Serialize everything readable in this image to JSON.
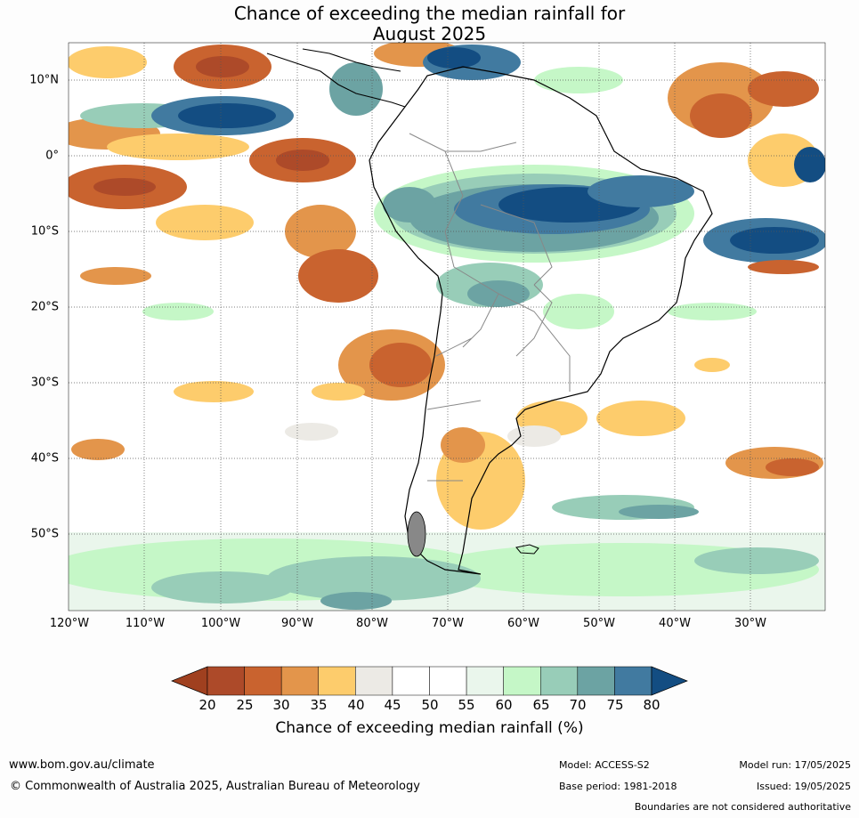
{
  "title": {
    "line1": "Chance of exceeding the median rainfall for",
    "line2": "August 2025"
  },
  "map": {
    "lon_labels": [
      "120°W",
      "110°W",
      "100°W",
      "90°W",
      "80°W",
      "70°W",
      "60°W",
      "50°W",
      "40°W",
      "30°W"
    ],
    "lat_labels": [
      "10°N",
      "0°",
      "10°S",
      "20°S",
      "30°S",
      "40°S",
      "50°S"
    ],
    "colors": {
      "ocean_default": "#ffffff",
      "coast": "#000000",
      "borders": "#888888",
      "grid": "#555555"
    }
  },
  "colorbar": {
    "ticks": [
      "20",
      "25",
      "30",
      "35",
      "40",
      "45",
      "50",
      "55",
      "60",
      "65",
      "70",
      "75",
      "80"
    ],
    "bin_colors": [
      "#a0401f",
      "#ad4a29",
      "#c9632f",
      "#e3954b",
      "#fdcc6c",
      "#eceae5",
      "#ffffff",
      "#ffffff",
      "#eaf6ec",
      "#c5f7c7",
      "#98cdb8",
      "#6ca3a3",
      "#417aa0",
      "#134d82"
    ],
    "title": "Chance of exceeding median rainfall (%)"
  },
  "footer": {
    "website": "www.bom.gov.au/climate",
    "copyright": "© Commonwealth of Australia 2025, Australian Bureau of Meteorology",
    "model": "Model: ACCESS-S2",
    "base_period": "Base period: 1981-2018",
    "model_run": "Model run: 17/05/2025",
    "issued": "Issued: 19/05/2025",
    "boundaries_note": "Boundaries are not considered authoritative"
  }
}
